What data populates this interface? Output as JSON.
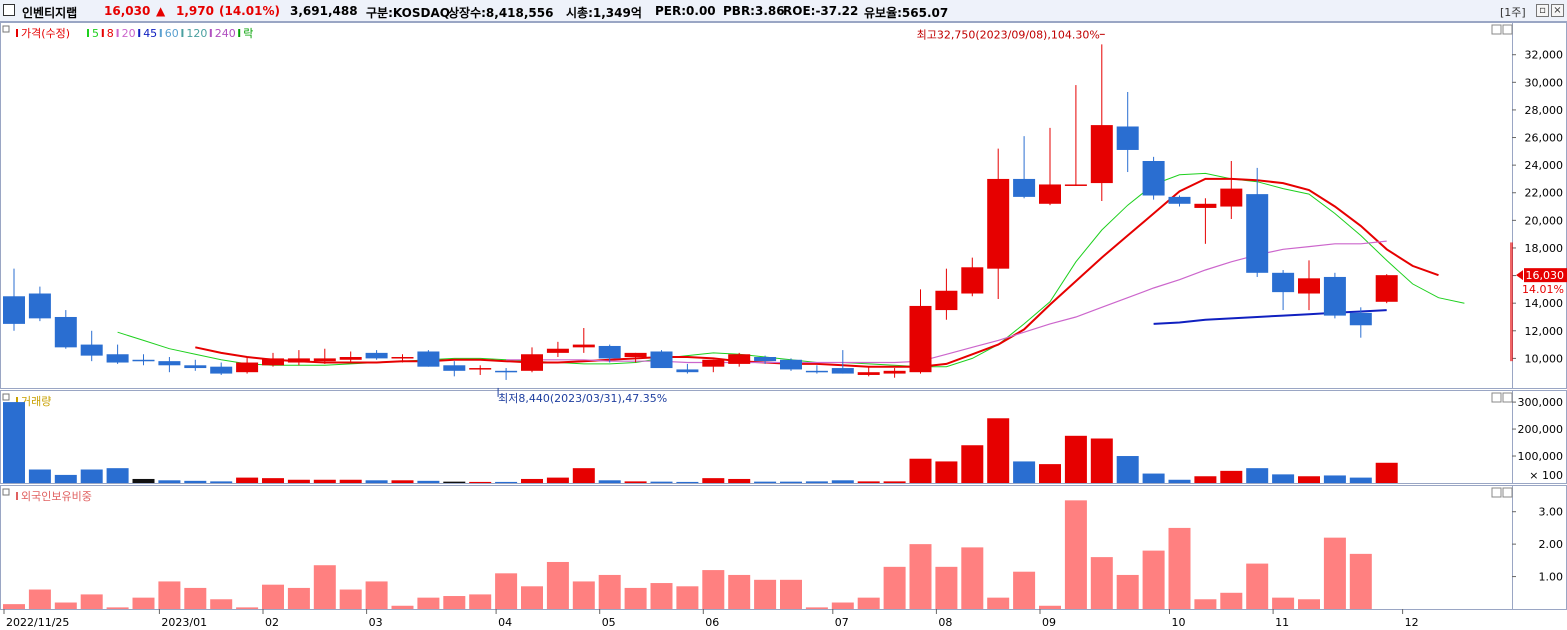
{
  "header": {
    "name": "인벤티지랩",
    "price": "16,030",
    "arrow": "▲",
    "change": "1,970",
    "change_pct": "(14.01%)",
    "volume": "3,691,488",
    "market": "구분:KOSDAQ",
    "listed": "상장수:8,418,556",
    "mcap": "시총:1,349억",
    "per": "PER:0.00",
    "pbr": "PBR:3.86",
    "roe": "ROE:-37.22",
    "retention": "유보율:565.07",
    "period": "[1주]"
  },
  "colors": {
    "up": "#e60000",
    "down": "#2a6ed1",
    "ma5": "#1ed01e",
    "ma20": "#e60000",
    "ma60": "#cc66cc",
    "ma120": "#1020c0",
    "foreign": "#ff8080",
    "header_bg": "#eef2fa"
  },
  "legend": {
    "price": [
      {
        "label": "가격(수정)",
        "color": "#e60000"
      },
      {
        "label": "5",
        "color": "#1ed01e"
      },
      {
        "label": "8",
        "color": "#e60000"
      },
      {
        "label": "20",
        "color": "#cc66cc"
      },
      {
        "label": "45",
        "color": "#1020c0"
      },
      {
        "label": "60",
        "color": "#5aa0d0"
      },
      {
        "label": "120",
        "color": "#4aa0a0"
      },
      {
        "label": "240",
        "color": "#b050c0"
      },
      {
        "label": "락",
        "color": "#00a000"
      }
    ],
    "volume": "거래량",
    "foreign": "외국인보유비중"
  },
  "chart_data": [
    {
      "type": "candlestick",
      "panel": "price",
      "ylim": [
        8000,
        33500
      ],
      "yticks": [
        10000,
        12000,
        14000,
        16000,
        18000,
        20000,
        22000,
        24000,
        26000,
        28000,
        30000,
        32000
      ],
      "ytick_labels": [
        "10,000",
        "12,000",
        "14,000",
        "16,000",
        "18,000",
        "20,000",
        "22,000",
        "24,000",
        "26,000",
        "28,000",
        "30,000",
        "32,000"
      ],
      "candles": [
        {
          "o": 14500,
          "h": 16500,
          "l": 12000,
          "c": 12500
        },
        {
          "o": 14700,
          "h": 15200,
          "l": 12700,
          "c": 12900
        },
        {
          "o": 13000,
          "h": 13500,
          "l": 10700,
          "c": 10800
        },
        {
          "o": 11000,
          "h": 12000,
          "l": 9800,
          "c": 10200
        },
        {
          "o": 10300,
          "h": 11000,
          "l": 9600,
          "c": 9700
        },
        {
          "o": 9900,
          "h": 10300,
          "l": 9500,
          "c": 9800
        },
        {
          "o": 9800,
          "h": 10100,
          "l": 9000,
          "c": 9500
        },
        {
          "o": 9500,
          "h": 9900,
          "l": 9100,
          "c": 9300
        },
        {
          "o": 9400,
          "h": 9700,
          "l": 8800,
          "c": 8900
        },
        {
          "o": 9000,
          "h": 10100,
          "l": 8900,
          "c": 9700
        },
        {
          "o": 9500,
          "h": 10400,
          "l": 9400,
          "c": 10000
        },
        {
          "o": 9700,
          "h": 10600,
          "l": 9500,
          "c": 10000
        },
        {
          "o": 9800,
          "h": 10700,
          "l": 9600,
          "c": 10000
        },
        {
          "o": 9900,
          "h": 10500,
          "l": 9700,
          "c": 10100
        },
        {
          "o": 10400,
          "h": 10600,
          "l": 9900,
          "c": 10000
        },
        {
          "o": 10000,
          "h": 10300,
          "l": 9700,
          "c": 10100
        },
        {
          "o": 10500,
          "h": 10600,
          "l": 9400,
          "c": 9400
        },
        {
          "o": 9500,
          "h": 9800,
          "l": 8700,
          "c": 9100
        },
        {
          "o": 9300,
          "h": 9500,
          "l": 8800,
          "c": 9300
        },
        {
          "o": 9100,
          "h": 9300,
          "l": 8440,
          "c": 9000
        },
        {
          "o": 9100,
          "h": 10800,
          "l": 9000,
          "c": 10300
        },
        {
          "o": 10400,
          "h": 11200,
          "l": 10100,
          "c": 10700
        },
        {
          "o": 10800,
          "h": 12200,
          "l": 10400,
          "c": 11000
        },
        {
          "o": 10900,
          "h": 11000,
          "l": 9700,
          "c": 10000
        },
        {
          "o": 10100,
          "h": 10400,
          "l": 9700,
          "c": 10400
        },
        {
          "o": 10500,
          "h": 10600,
          "l": 9300,
          "c": 9300
        },
        {
          "o": 9200,
          "h": 9600,
          "l": 8900,
          "c": 9000
        },
        {
          "o": 9400,
          "h": 9900,
          "l": 9000,
          "c": 9900
        },
        {
          "o": 9600,
          "h": 10400,
          "l": 9400,
          "c": 10300
        },
        {
          "o": 10100,
          "h": 10200,
          "l": 9600,
          "c": 9800
        },
        {
          "o": 9900,
          "h": 10000,
          "l": 9100,
          "c": 9200
        },
        {
          "o": 9100,
          "h": 9500,
          "l": 8900,
          "c": 9000
        },
        {
          "o": 9300,
          "h": 10600,
          "l": 8900,
          "c": 8900
        },
        {
          "o": 8800,
          "h": 9400,
          "l": 8700,
          "c": 9000
        },
        {
          "o": 8900,
          "h": 9300,
          "l": 8600,
          "c": 9100
        },
        {
          "o": 9000,
          "h": 15000,
          "l": 8900,
          "c": 13800
        },
        {
          "o": 13500,
          "h": 16500,
          "l": 12800,
          "c": 14900
        },
        {
          "o": 14700,
          "h": 17300,
          "l": 14500,
          "c": 16600
        },
        {
          "o": 16500,
          "h": 25200,
          "l": 14300,
          "c": 23000
        },
        {
          "o": 23000,
          "h": 26100,
          "l": 21600,
          "c": 21700
        },
        {
          "o": 21200,
          "h": 26700,
          "l": 21100,
          "c": 22600
        },
        {
          "o": 22600,
          "h": 29800,
          "l": 22500,
          "c": 22600
        },
        {
          "o": 22700,
          "h": 32750,
          "l": 21400,
          "c": 26900
        },
        {
          "o": 26800,
          "h": 29300,
          "l": 23500,
          "c": 25100
        },
        {
          "o": 24300,
          "h": 24600,
          "l": 21500,
          "c": 21800
        },
        {
          "o": 21700,
          "h": 21800,
          "l": 21000,
          "c": 21200
        },
        {
          "o": 20900,
          "h": 21600,
          "l": 18300,
          "c": 21200
        },
        {
          "o": 21000,
          "h": 24300,
          "l": 20100,
          "c": 22300
        },
        {
          "o": 21900,
          "h": 23800,
          "l": 15900,
          "c": 16200
        },
        {
          "o": 16200,
          "h": 16400,
          "l": 13500,
          "c": 14800
        },
        {
          "o": 14700,
          "h": 17100,
          "l": 13500,
          "c": 15800
        },
        {
          "o": 15900,
          "h": 16200,
          "l": 12900,
          "c": 13100
        },
        {
          "o": 13300,
          "h": 13700,
          "l": 11500,
          "c": 12400
        },
        {
          "o": 14100,
          "h": 16100,
          "l": 14000,
          "c": 16030
        }
      ],
      "ma": [
        {
          "period": 5,
          "start": 4,
          "values": [
            11900,
            11300,
            10700,
            10300,
            9900,
            9600,
            9500,
            9500,
            9500,
            9600,
            9700,
            9800,
            9900,
            10000,
            10000,
            9900,
            9800,
            9700,
            9600,
            9600,
            9700,
            10000,
            10200,
            10400,
            10300,
            10100,
            9900,
            9700,
            9700,
            9600,
            9500,
            9400,
            9400,
            10000,
            11000,
            12500,
            14100,
            17000,
            19300,
            21100,
            22600,
            23300,
            23400,
            23000,
            22800,
            22300,
            21900,
            20500,
            18900,
            17100,
            15400,
            14400,
            14000
          ]
        },
        {
          "period": 8,
          "start": 7,
          "values": [
            10800,
            10400,
            10100,
            9900,
            9800,
            9700,
            9700,
            9700,
            9800,
            9800,
            9900,
            9900,
            9800,
            9700,
            9700,
            9800,
            9900,
            10000,
            10100,
            10100,
            10000,
            9800,
            9700,
            9600,
            9600,
            9500,
            9400,
            9400,
            9400,
            9600,
            10300,
            11000,
            12100,
            13900,
            15600,
            17300,
            18900,
            20500,
            22100,
            23000,
            23000,
            22900,
            22700,
            22200,
            21000,
            19600,
            17900,
            16700,
            16030
          ]
        },
        {
          "period": 20,
          "start": 19,
          "values": [
            9900,
            9900,
            9900,
            9900,
            9800,
            9800,
            9800,
            9700,
            9700,
            9700,
            9700,
            9700,
            9700,
            9700,
            9700,
            9700,
            9800,
            10300,
            10800,
            11300,
            11900,
            12500,
            13000,
            13700,
            14400,
            15100,
            15700,
            16400,
            17000,
            17500,
            17900,
            18100,
            18300,
            18300,
            18500
          ]
        },
        {
          "period": 45,
          "start": 44,
          "values": [
            12500,
            12600,
            12800,
            12900,
            13000,
            13100,
            13200,
            13300,
            13400,
            13500
          ]
        }
      ],
      "annotations": [
        {
          "text": "최고32,750(2023/09/08),104.30%",
          "index": 42,
          "value": 32750
        },
        {
          "text": "최저8,440(2023/03/31),47.35%",
          "index": 19,
          "value": 8440
        }
      ],
      "last_price_label": "16,030",
      "last_pct_label": "14.01%"
    },
    {
      "type": "bar",
      "panel": "volume",
      "ylim": [
        0,
        330000
      ],
      "yticks": [
        100000,
        200000,
        300000
      ],
      "ytick_labels": [
        "100,000",
        "200,000",
        "300,000"
      ],
      "unit_label": "× 100",
      "values": [
        300000,
        50000,
        30000,
        50000,
        55000,
        15000,
        10000,
        8000,
        6000,
        20000,
        18000,
        12000,
        12000,
        12000,
        10000,
        10000,
        8000,
        5000,
        4000,
        4000,
        15000,
        20000,
        55000,
        10000,
        6000,
        5000,
        4000,
        18000,
        15000,
        5000,
        5000,
        6000,
        10000,
        6000,
        6000,
        90000,
        80000,
        140000,
        240000,
        80000,
        70000,
        175000,
        165000,
        100000,
        35000,
        12000,
        25000,
        45000,
        55000,
        32000,
        25000,
        28000,
        20000,
        75000
      ],
      "colors_by_candle": true,
      "black_bars": [
        5,
        17
      ]
    },
    {
      "type": "bar",
      "panel": "foreign_ownership",
      "ylim": [
        0,
        3.7
      ],
      "yticks": [
        1.0,
        2.0,
        3.0
      ],
      "ytick_labels": [
        "1.00",
        "2.00",
        "3.00"
      ],
      "values": [
        0.15,
        0.6,
        0.2,
        0.45,
        0.05,
        0.35,
        0.85,
        0.65,
        0.3,
        0.05,
        0.75,
        0.65,
        1.35,
        0.6,
        0.85,
        0.1,
        0.35,
        0.4,
        0.45,
        1.1,
        0.7,
        1.45,
        0.85,
        1.05,
        0.65,
        0.8,
        0.7,
        1.2,
        1.05,
        0.9,
        0.9,
        0.05,
        0.2,
        0.35,
        1.3,
        2.0,
        1.3,
        1.9,
        0.35,
        1.15,
        0.1,
        3.35,
        1.6,
        1.05,
        1.8,
        2.5,
        0.3,
        0.5,
        1.4,
        0.35,
        0.3,
        2.2,
        1.7
      ]
    }
  ],
  "x_axis": {
    "labels": [
      {
        "text": "2022/11/25",
        "index": 0
      },
      {
        "text": "2023/01",
        "index": 6
      },
      {
        "text": "02",
        "index": 10
      },
      {
        "text": "03",
        "index": 14
      },
      {
        "text": "04",
        "index": 19
      },
      {
        "text": "05",
        "index": 23
      },
      {
        "text": "06",
        "index": 27
      },
      {
        "text": "07",
        "index": 32
      },
      {
        "text": "08",
        "index": 36
      },
      {
        "text": "09",
        "index": 40
      },
      {
        "text": "10",
        "index": 45
      },
      {
        "text": "11",
        "index": 49
      },
      {
        "text": "12",
        "index": 54
      }
    ]
  }
}
